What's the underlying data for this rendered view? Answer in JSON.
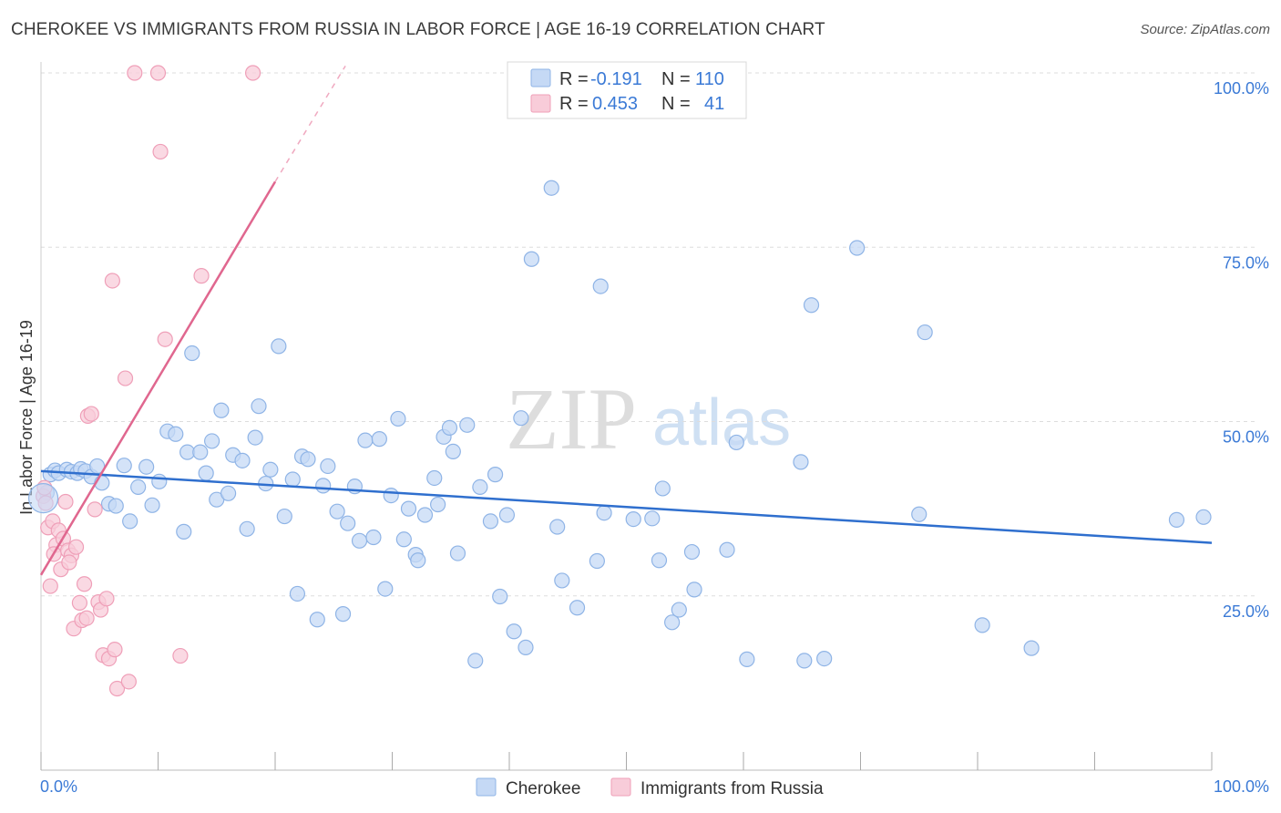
{
  "title": "CHEROKEE VS IMMIGRANTS FROM RUSSIA IN LABOR FORCE | AGE 16-19 CORRELATION CHART",
  "source": "Source: ZipAtlas.com",
  "watermark": {
    "part1": "ZIP",
    "part2": "atlas"
  },
  "colors": {
    "blue_fill": "#c5d9f5",
    "blue_stroke": "#8fb4e6",
    "blue_line": "#2f6fce",
    "pink_fill": "#f8ccd9",
    "pink_stroke": "#ef9fb8",
    "pink_line": "#e0678f",
    "axis_text": "#3b7ad6",
    "grid": "#dddddd"
  },
  "legend": {
    "rows": [
      {
        "r_label": "R =",
        "r_value": "-0.191",
        "n_label": "N =",
        "n_value": "110"
      },
      {
        "r_label": "R =",
        "r_value": "0.453",
        "n_label": "N =",
        "n_value": "41"
      }
    ]
  },
  "chart_data": {
    "type": "scatter",
    "title": "CHEROKEE VS IMMIGRANTS FROM RUSSIA IN LABOR FORCE | AGE 16-19 CORRELATION CHART",
    "xlabel": "",
    "ylabel": "In Labor Force | Age 16-19",
    "xlim": [
      0,
      100
    ],
    "ylim": [
      0,
      100
    ],
    "x_tick_labels": [
      "0.0%",
      "100.0%"
    ],
    "y_ticks": [
      25,
      50,
      75,
      100
    ],
    "y_tick_labels": [
      "25.0%",
      "50.0%",
      "75.0%",
      "100.0%"
    ],
    "grid": true,
    "series": [
      {
        "name": "Cherokee",
        "color": "#8fb4e6",
        "trend": {
          "x0": 0,
          "y0": 42.9,
          "x1": 100,
          "y1": 32.6
        },
        "points": [
          [
            0.5,
            39.8
          ],
          [
            0.8,
            42.4
          ],
          [
            1.2,
            43.0
          ],
          [
            1.5,
            42.6
          ],
          [
            2.2,
            43.1
          ],
          [
            2.6,
            42.8
          ],
          [
            3.1,
            42.6
          ],
          [
            3.4,
            43.2
          ],
          [
            3.8,
            42.9
          ],
          [
            4.3,
            42.1
          ],
          [
            4.8,
            43.6
          ],
          [
            5.2,
            41.2
          ],
          [
            5.8,
            38.2
          ],
          [
            6.4,
            37.9
          ],
          [
            7.1,
            43.7
          ],
          [
            7.6,
            35.7
          ],
          [
            8.3,
            40.6
          ],
          [
            9.0,
            43.5
          ],
          [
            9.5,
            38.0
          ],
          [
            10.1,
            41.4
          ],
          [
            10.8,
            48.6
          ],
          [
            11.5,
            48.2
          ],
          [
            12.2,
            34.2
          ],
          [
            12.5,
            45.6
          ],
          [
            12.9,
            59.8
          ],
          [
            13.6,
            45.6
          ],
          [
            14.1,
            42.6
          ],
          [
            14.6,
            47.2
          ],
          [
            15.0,
            38.8
          ],
          [
            15.4,
            51.6
          ],
          [
            16.0,
            39.7
          ],
          [
            16.4,
            45.2
          ],
          [
            17.2,
            44.4
          ],
          [
            17.6,
            34.6
          ],
          [
            18.3,
            47.7
          ],
          [
            18.6,
            52.2
          ],
          [
            19.2,
            41.1
          ],
          [
            19.6,
            43.1
          ],
          [
            20.3,
            60.8
          ],
          [
            20.8,
            36.4
          ],
          [
            21.5,
            41.7
          ],
          [
            21.9,
            25.3
          ],
          [
            22.3,
            45.0
          ],
          [
            22.8,
            44.6
          ],
          [
            23.6,
            21.6
          ],
          [
            24.1,
            40.8
          ],
          [
            24.5,
            43.6
          ],
          [
            25.3,
            37.1
          ],
          [
            25.8,
            22.4
          ],
          [
            26.2,
            35.4
          ],
          [
            26.8,
            40.7
          ],
          [
            27.2,
            32.9
          ],
          [
            27.7,
            47.3
          ],
          [
            28.4,
            33.4
          ],
          [
            28.9,
            47.5
          ],
          [
            29.4,
            26.0
          ],
          [
            29.9,
            39.4
          ],
          [
            30.5,
            50.4
          ],
          [
            31.0,
            33.1
          ],
          [
            31.4,
            37.5
          ],
          [
            32.0,
            30.9
          ],
          [
            32.2,
            30.1
          ],
          [
            32.8,
            36.6
          ],
          [
            33.6,
            41.9
          ],
          [
            33.9,
            38.1
          ],
          [
            34.4,
            47.8
          ],
          [
            34.9,
            49.1
          ],
          [
            35.2,
            45.7
          ],
          [
            35.6,
            31.1
          ],
          [
            36.4,
            49.5
          ],
          [
            37.1,
            15.7
          ],
          [
            37.5,
            40.6
          ],
          [
            38.4,
            35.7
          ],
          [
            38.8,
            42.4
          ],
          [
            39.2,
            24.9
          ],
          [
            39.8,
            36.6
          ],
          [
            40.4,
            19.9
          ],
          [
            41.0,
            50.5
          ],
          [
            41.4,
            17.6
          ],
          [
            41.9,
            73.3
          ],
          [
            43.6,
            83.5
          ],
          [
            44.1,
            34.9
          ],
          [
            44.5,
            27.2
          ],
          [
            45.8,
            23.3
          ],
          [
            47.5,
            30.0
          ],
          [
            47.8,
            69.4
          ],
          [
            48.1,
            36.9
          ],
          [
            50.6,
            36.0
          ],
          [
            52.2,
            36.1
          ],
          [
            52.8,
            30.1
          ],
          [
            53.1,
            40.4
          ],
          [
            53.9,
            21.2
          ],
          [
            54.5,
            23.0
          ],
          [
            55.6,
            31.3
          ],
          [
            55.8,
            25.9
          ],
          [
            58.6,
            31.6
          ],
          [
            59.4,
            47.0
          ],
          [
            60.3,
            15.9
          ],
          [
            64.9,
            44.2
          ],
          [
            65.2,
            15.7
          ],
          [
            65.8,
            66.7
          ],
          [
            66.9,
            16.0
          ],
          [
            69.7,
            74.9
          ],
          [
            75.0,
            36.7
          ],
          [
            75.5,
            62.8
          ],
          [
            80.4,
            20.8
          ],
          [
            84.6,
            17.5
          ],
          [
            97.0,
            35.9
          ],
          [
            99.3,
            36.3
          ]
        ]
      },
      {
        "name": "Immigrants from Russia",
        "color": "#ef9fb8",
        "trend": {
          "x0": 0,
          "y0": 28.0,
          "x1": 20,
          "y1": 84.4,
          "dash_to": {
            "x": 26,
            "y": 101
          }
        },
        "points": [
          [
            0.2,
            39.3
          ],
          [
            0.4,
            38.3
          ],
          [
            0.6,
            34.8
          ],
          [
            0.8,
            26.4
          ],
          [
            1.0,
            35.7
          ],
          [
            1.3,
            32.3
          ],
          [
            1.5,
            34.4
          ],
          [
            1.7,
            28.8
          ],
          [
            1.9,
            33.2
          ],
          [
            2.1,
            38.5
          ],
          [
            2.3,
            31.5
          ],
          [
            2.6,
            30.8
          ],
          [
            2.8,
            20.3
          ],
          [
            3.0,
            32.0
          ],
          [
            3.3,
            24.0
          ],
          [
            3.5,
            21.5
          ],
          [
            3.7,
            26.7
          ],
          [
            4.0,
            50.8
          ],
          [
            4.3,
            51.1
          ],
          [
            4.6,
            37.4
          ],
          [
            4.9,
            24.1
          ],
          [
            5.1,
            23.0
          ],
          [
            5.3,
            16.5
          ],
          [
            5.6,
            24.6
          ],
          [
            5.8,
            16.0
          ],
          [
            6.1,
            70.2
          ],
          [
            6.3,
            17.3
          ],
          [
            6.5,
            11.7
          ],
          [
            7.2,
            56.2
          ],
          [
            7.5,
            12.7
          ],
          [
            8.0,
            100.0
          ],
          [
            10.0,
            100.0
          ],
          [
            10.2,
            88.7
          ],
          [
            10.6,
            61.8
          ],
          [
            11.9,
            16.4
          ],
          [
            13.7,
            70.9
          ],
          [
            18.1,
            100.0
          ],
          [
            0.3,
            40.5
          ],
          [
            1.1,
            31.0
          ],
          [
            2.4,
            29.8
          ],
          [
            3.9,
            21.8
          ]
        ]
      }
    ]
  },
  "bottom_legend": [
    "Cherokee",
    "Immigrants from Russia"
  ]
}
